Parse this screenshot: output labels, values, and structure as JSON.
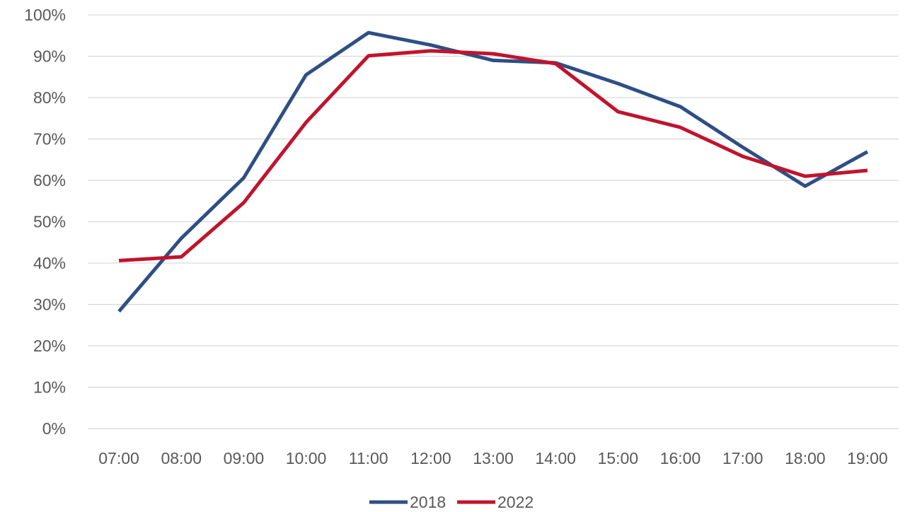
{
  "chart_data": {
    "type": "line",
    "title": "",
    "xlabel": "",
    "ylabel": "",
    "categories": [
      "07:00",
      "08:00",
      "09:00",
      "10:00",
      "11:00",
      "12:00",
      "13:00",
      "14:00",
      "15:00",
      "16:00",
      "17:00",
      "18:00",
      "19:00"
    ],
    "y_ticks": [
      "0%",
      "10%",
      "20%",
      "30%",
      "40%",
      "50%",
      "60%",
      "70%",
      "80%",
      "90%",
      "100%"
    ],
    "ylim": [
      0,
      100
    ],
    "y_unit": "%",
    "grid": "horizontal",
    "legend_position": "bottom",
    "series": [
      {
        "name": "2018",
        "color": "#2e4f85",
        "values": [
          28.3,
          46.0,
          60.6,
          85.5,
          95.7,
          92.7,
          89.0,
          88.4,
          83.4,
          77.8,
          68.0,
          58.6,
          66.9
        ]
      },
      {
        "name": "2022",
        "color": "#c0142d",
        "values": [
          40.6,
          41.5,
          54.6,
          74.0,
          90.1,
          91.3,
          90.6,
          88.2,
          76.6,
          72.8,
          65.8,
          61.0,
          62.4
        ]
      }
    ]
  }
}
